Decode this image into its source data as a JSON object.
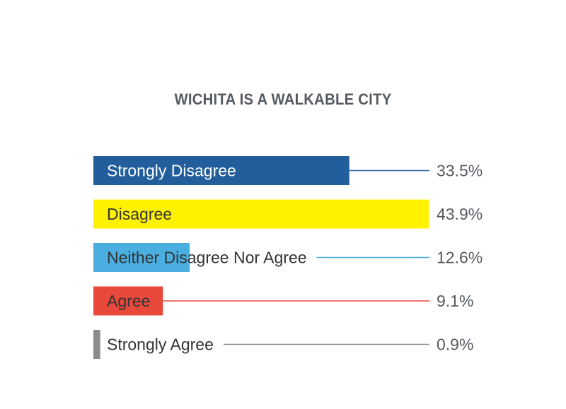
{
  "chart_data": {
    "type": "bar",
    "orientation": "horizontal",
    "title": "WICHITA IS A WALKABLE CITY",
    "categories": [
      "Strongly Disagree",
      "Disagree",
      "Neither Disagree Nor Agree",
      "Agree",
      "Strongly Agree"
    ],
    "values": [
      33.5,
      43.9,
      12.6,
      9.1,
      0.9
    ],
    "value_labels": [
      "33.5%",
      "43.9%",
      "12.6%",
      "9.1%",
      "0.9%"
    ],
    "unit": "%",
    "colors": [
      "#225d9c",
      "#fff200",
      "#4aaee0",
      "#e8493b",
      "#8c8c8c"
    ],
    "label_colors": [
      "#ffffff",
      "#333333",
      "#333333",
      "#333333",
      "#333333"
    ],
    "xlim": [
      0,
      43.9
    ],
    "grid": false,
    "legend": "none"
  }
}
